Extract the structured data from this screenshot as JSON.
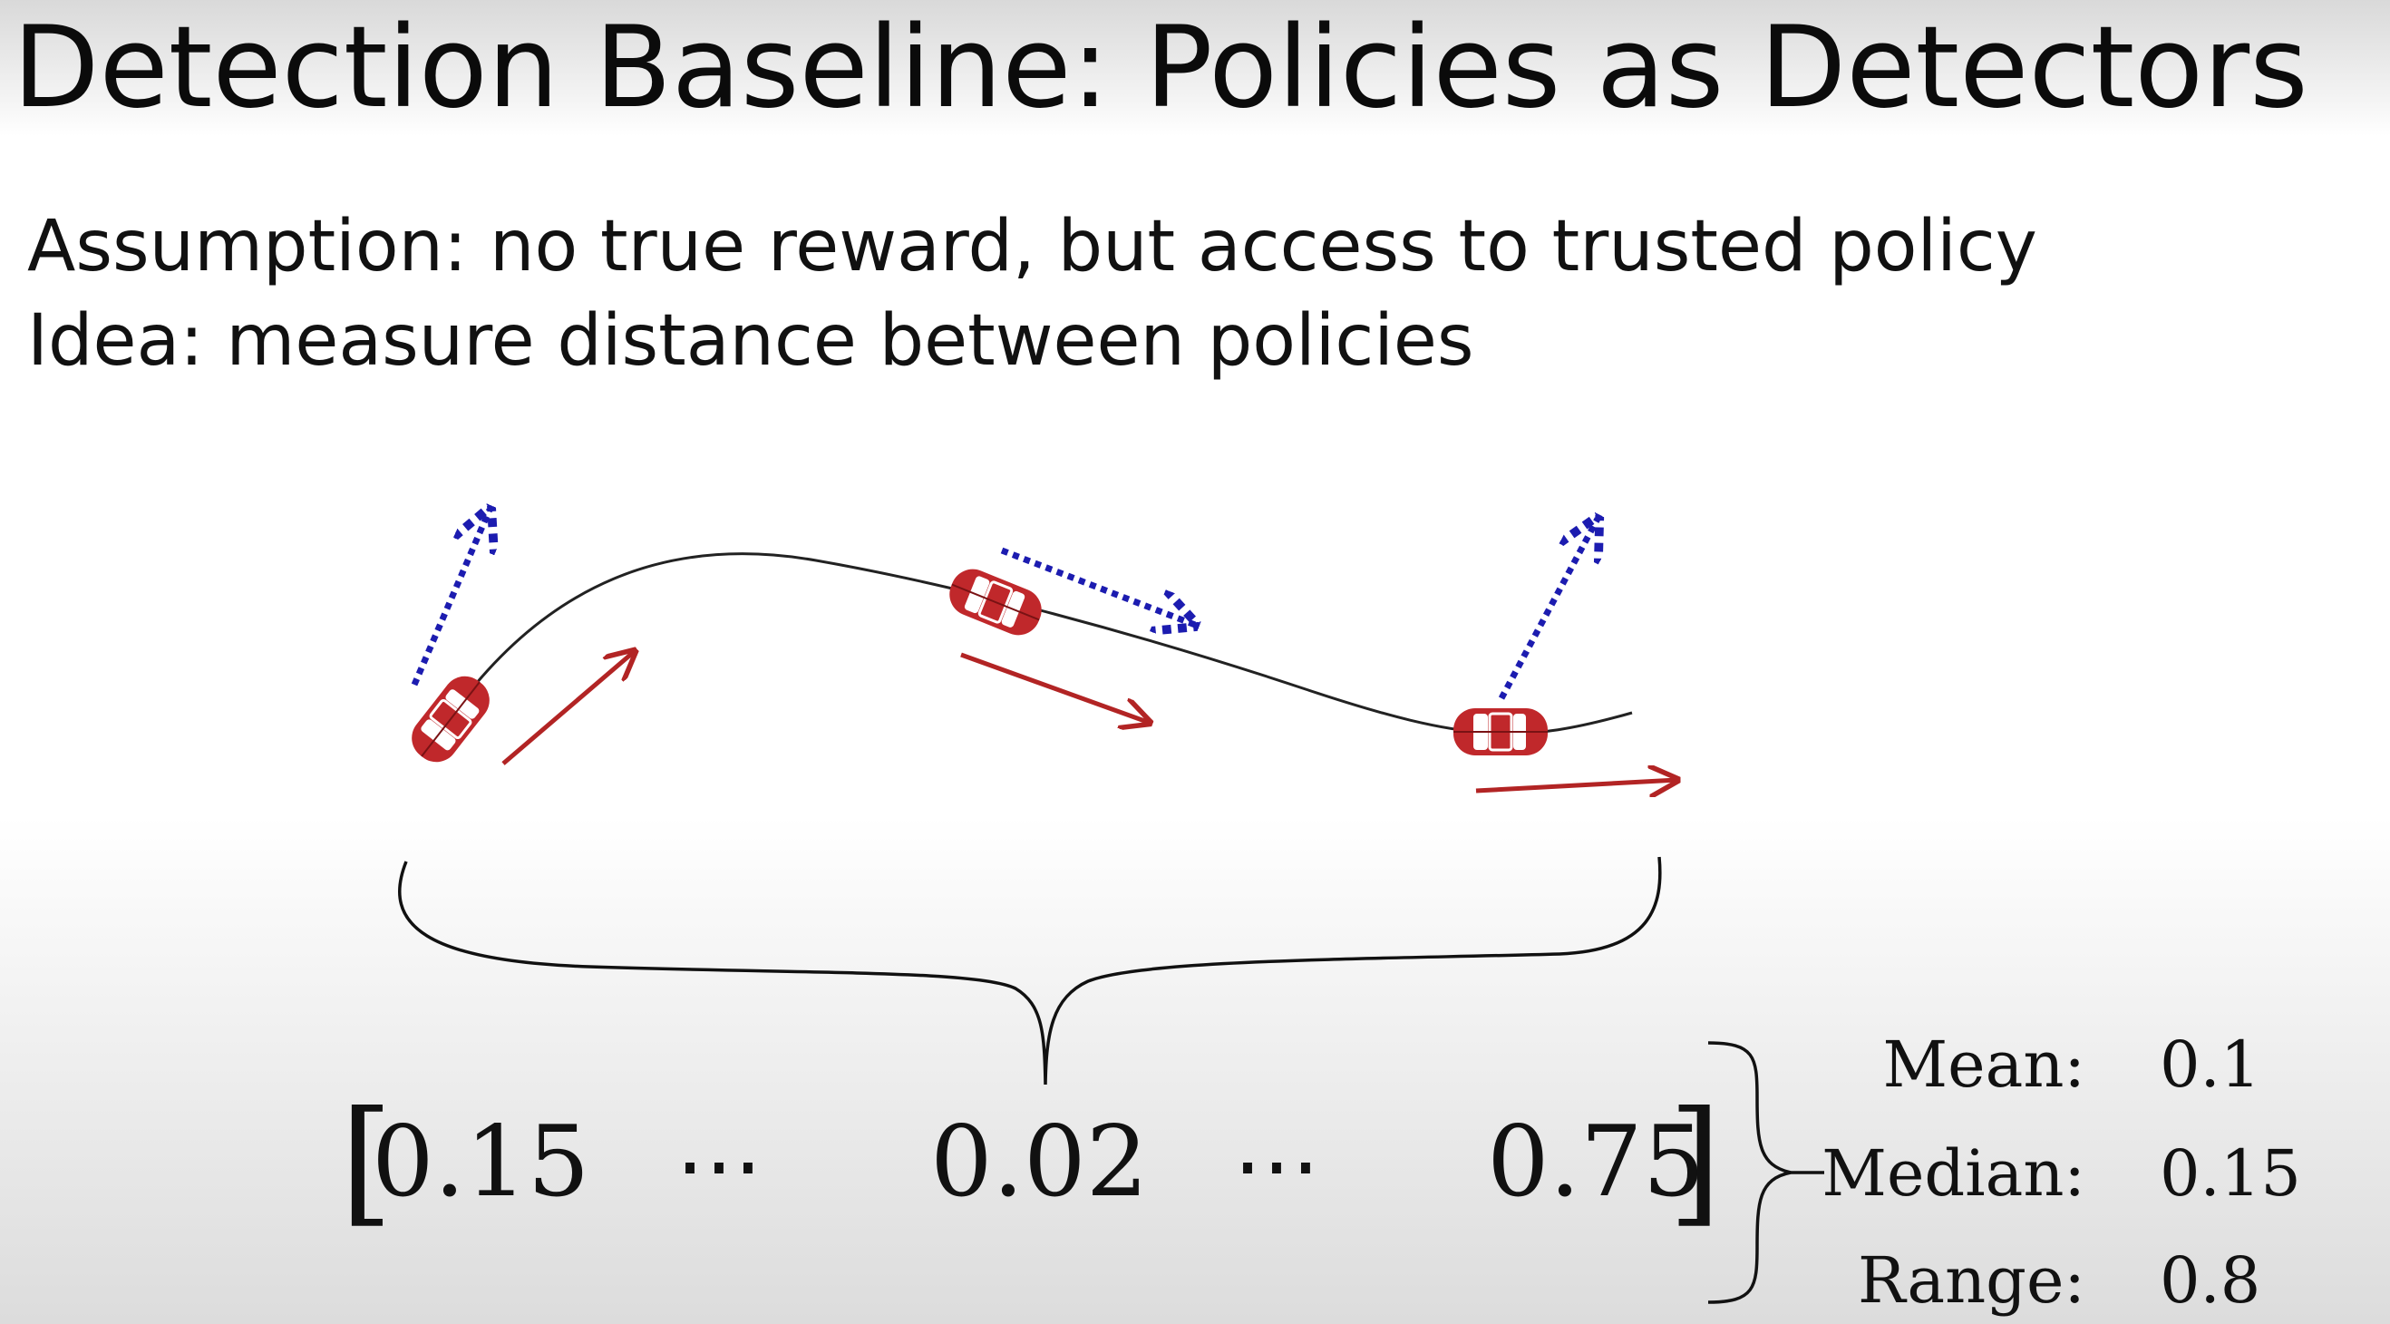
{
  "slide": {
    "title": "Detection Baseline: Policies as Detectors",
    "assumption": "Assumption: no true reward, but access to trusted policy",
    "idea": "Idea: measure distance between policies"
  },
  "vector": {
    "open_bracket": "[",
    "close_bracket": "]",
    "values": [
      "0.15",
      "0.02",
      "0.75"
    ],
    "ellipsis": "⋯"
  },
  "stats": [
    {
      "label": "Mean:",
      "value": "0.1"
    },
    {
      "label": "Median:",
      "value": "0.15"
    },
    {
      "label": "Range:",
      "value": "0.8"
    }
  ],
  "colors": {
    "car": "#c0282b",
    "trusted_arrow": "#1c1cb0",
    "policy_arrow": "#b22424",
    "trajectory": "#222222"
  },
  "icons": {
    "car": "car-icon"
  }
}
